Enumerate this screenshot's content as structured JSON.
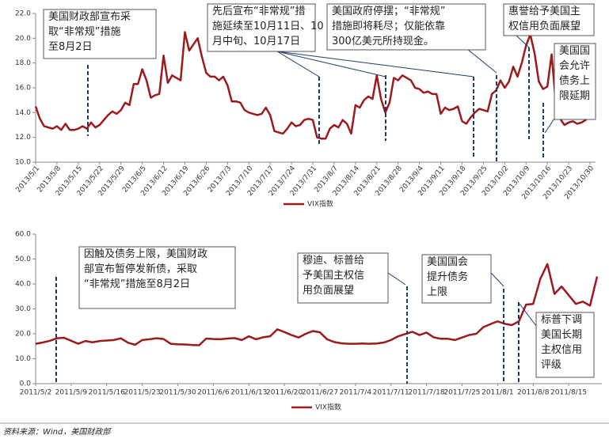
{
  "chart_data": [
    {
      "type": "line",
      "categories": [
        "2013/5/1",
        null,
        null,
        null,
        null,
        "2013/5/8",
        null,
        null,
        null,
        null,
        "2013/5/15",
        null,
        null,
        null,
        null,
        "2013/5/22",
        null,
        null,
        null,
        null,
        "2013/5/29",
        null,
        null,
        null,
        null,
        "2013/6/5",
        null,
        null,
        null,
        null,
        "2013/6/12",
        null,
        null,
        null,
        null,
        "2013/6/19",
        null,
        null,
        null,
        null,
        "2013/6/26",
        null,
        null,
        null,
        null,
        "2013/7/3",
        null,
        null,
        null,
        null,
        "2013/7/10",
        null,
        null,
        null,
        null,
        "2013/7/17",
        null,
        null,
        null,
        null,
        "2013/7/24",
        null,
        null,
        null,
        null,
        "2013/7/31",
        null,
        null,
        null,
        null,
        "2013/8/7",
        null,
        null,
        null,
        null,
        "2013/8/14",
        null,
        null,
        null,
        null,
        "2013/8/21",
        null,
        null,
        null,
        null,
        "2013/8/28",
        null,
        null,
        null,
        null,
        "2013/9/4",
        null,
        null,
        null,
        null,
        "2013/9/11",
        null,
        null,
        null,
        null,
        "2013/9/18",
        null,
        null,
        null,
        null,
        "2013/9/25",
        null,
        null,
        null,
        null,
        "2013/10/2",
        null,
        null,
        null,
        null,
        "2013/10/9",
        null,
        null,
        null,
        null,
        "2013/10/16",
        null,
        null,
        null,
        null,
        "2013/10/23",
        null,
        null,
        null,
        null,
        "2013/10/30"
      ],
      "series": [
        {
          "name": "VIX指数",
          "color": "#9c1a1c",
          "values": [
            14.5,
            13.5,
            12.9,
            12.8,
            12.7,
            12.9,
            12.6,
            13.1,
            12.6,
            12.6,
            12.7,
            12.9,
            12.7,
            13.2,
            12.8,
            13.0,
            13.4,
            13.8,
            14.1,
            13.9,
            14.2,
            14.8,
            14.6,
            16.3,
            16.3,
            17.5,
            16.6,
            15.2,
            15.4,
            15.5,
            18.6,
            16.4,
            17.0,
            16.8,
            16.6,
            20.5,
            19.0,
            19.5,
            20.0,
            18.5,
            17.2,
            16.9,
            16.9,
            16.6,
            16.9,
            16.2,
            14.9,
            14.9,
            14.8,
            14.2,
            14.0,
            13.9,
            13.8,
            13.9,
            14.4,
            13.8,
            12.5,
            12.4,
            12.3,
            12.7,
            13.2,
            12.9,
            13.0,
            13.4,
            13.5,
            13.4,
            12.0,
            11.9,
            11.9,
            12.7,
            13.0,
            12.8,
            13.4,
            13.1,
            12.3,
            14.6,
            14.4,
            15.0,
            15.3,
            15.1,
            17.0,
            15.1,
            14.0,
            14.8,
            16.8,
            16.6,
            17.0,
            16.8,
            16.6,
            16.0,
            15.9,
            15.6,
            15.7,
            15.5,
            15.5,
            13.9,
            14.4,
            14.2,
            14.3,
            14.5,
            13.3,
            13.1,
            13.6,
            14.0,
            14.3,
            14.2,
            14.1,
            15.5,
            15.8,
            16.6,
            16.0,
            16.5,
            17.7,
            16.9,
            18.0,
            19.4,
            20.3,
            18.8,
            16.5,
            15.9,
            16.1,
            18.7,
            14.7,
            13.5,
            13.0,
            13.2,
            13.3,
            13.1,
            13.2,
            13.4,
            13.8
          ]
        }
      ],
      "ylim": [
        10,
        22
      ],
      "yticks": [
        {
          "value": 10,
          "label": "10.0"
        },
        {
          "value": 12,
          "label": "12.0"
        },
        {
          "value": 14,
          "label": "14.0"
        },
        {
          "value": 16,
          "label": "16.0"
        },
        {
          "value": 18,
          "label": "18.0"
        },
        {
          "value": 20,
          "label": "20.0"
        },
        {
          "value": 22,
          "label": "22.0"
        }
      ],
      "legend": "bottom",
      "annotations": [
        {
          "lines": [
            "美国财政部宣布采",
            "取“非常规”措施",
            "至8月2日"
          ]
        },
        {
          "lines": [
            "先后宣布“非常规”措",
            "施延续至10月11日、10",
            "月中旬、10月17日"
          ]
        },
        {
          "lines": [
            "美国政府停摆；“非常规”",
            "措施即将耗尽；仅能依靠",
            "300亿美元所持现金。"
          ]
        },
        {
          "lines": [
            "惠誉给予美国主",
            "权信用负面展望"
          ]
        },
        {
          "lines": [
            "美国国",
            "会允许",
            "债务上",
            "限延期"
          ]
        }
      ]
    },
    {
      "type": "line",
      "categories": [
        "2011/5/2",
        null,
        null,
        null,
        null,
        "2011/5/9",
        null,
        null,
        null,
        null,
        "2011/5/16",
        null,
        null,
        null,
        null,
        "2011/5/23",
        null,
        null,
        null,
        null,
        "2011/5/30",
        null,
        null,
        null,
        null,
        "2011/6/6",
        null,
        null,
        null,
        null,
        "2011/6/13",
        null,
        null,
        null,
        null,
        "2011/6/20",
        null,
        null,
        null,
        null,
        "2011/6/27",
        null,
        null,
        null,
        null,
        "2011/7/4",
        null,
        null,
        null,
        null,
        "2011/7/11",
        null,
        null,
        null,
        null,
        "2011/7/18",
        null,
        null,
        null,
        null,
        "2011/7/25",
        null,
        null,
        null,
        null,
        "2011/8/1",
        null,
        null,
        null,
        null,
        "2011/8/8",
        null,
        null,
        null,
        null,
        "2011/8/15",
        null,
        null,
        null,
        null
      ],
      "series": [
        {
          "name": "VIX指数",
          "color": "#9c1a1c",
          "values": [
            16.0,
            16.5,
            17.2,
            18.2,
            18.4,
            17.2,
            16.0,
            17.1,
            16.6,
            17.1,
            17.3,
            17.5,
            18.2,
            16.4,
            15.6,
            17.5,
            17.8,
            18.2,
            17.9,
            16.0,
            15.8,
            15.7,
            15.5,
            15.4,
            18.1,
            17.9,
            17.8,
            18.1,
            18.3,
            17.5,
            19.0,
            17.8,
            18.6,
            19.0,
            21.8,
            20.7,
            19.5,
            18.5,
            20.0,
            21.1,
            20.6,
            17.8,
            16.7,
            16.2,
            16.0,
            16.0,
            16.1,
            16.0,
            16.1,
            16.5,
            17.5,
            19.0,
            19.9,
            20.8,
            19.5,
            20.5,
            18.6,
            18.0,
            18.0,
            17.5,
            18.5,
            19.5,
            20.0,
            22.7,
            23.9,
            25.0,
            24.0,
            23.5,
            25.0,
            31.7,
            32.0,
            42.0,
            48.0,
            36.0,
            39.0,
            35.5,
            32.0,
            32.9,
            31.3,
            43.0
          ]
        }
      ],
      "ylim": [
        0,
        60
      ],
      "yticks": [
        {
          "value": 0,
          "label": "0.0"
        },
        {
          "value": 10,
          "label": "10.0"
        },
        {
          "value": 20,
          "label": "20.0"
        },
        {
          "value": 30,
          "label": "30.0"
        },
        {
          "value": 40,
          "label": "40.0"
        },
        {
          "value": 50,
          "label": "50.0"
        },
        {
          "value": 60,
          "label": "60.0"
        }
      ],
      "legend": "bottom",
      "annotations": [
        {
          "lines": [
            "因触及债务上限，美国财政",
            "部宣布暂停发新债，采取",
            "“非常规”措施至8月2日"
          ]
        },
        {
          "lines": [
            "穆迪、标普给",
            "予美国主权信",
            "用负面展望"
          ]
        },
        {
          "lines": [
            "美国国会",
            "提升债务",
            "上限"
          ]
        },
        {
          "lines": [
            "标普下调",
            "美国长期",
            "主权信用",
            "评级"
          ]
        }
      ]
    }
  ],
  "source": "资料来源：Wind，美国财政部"
}
